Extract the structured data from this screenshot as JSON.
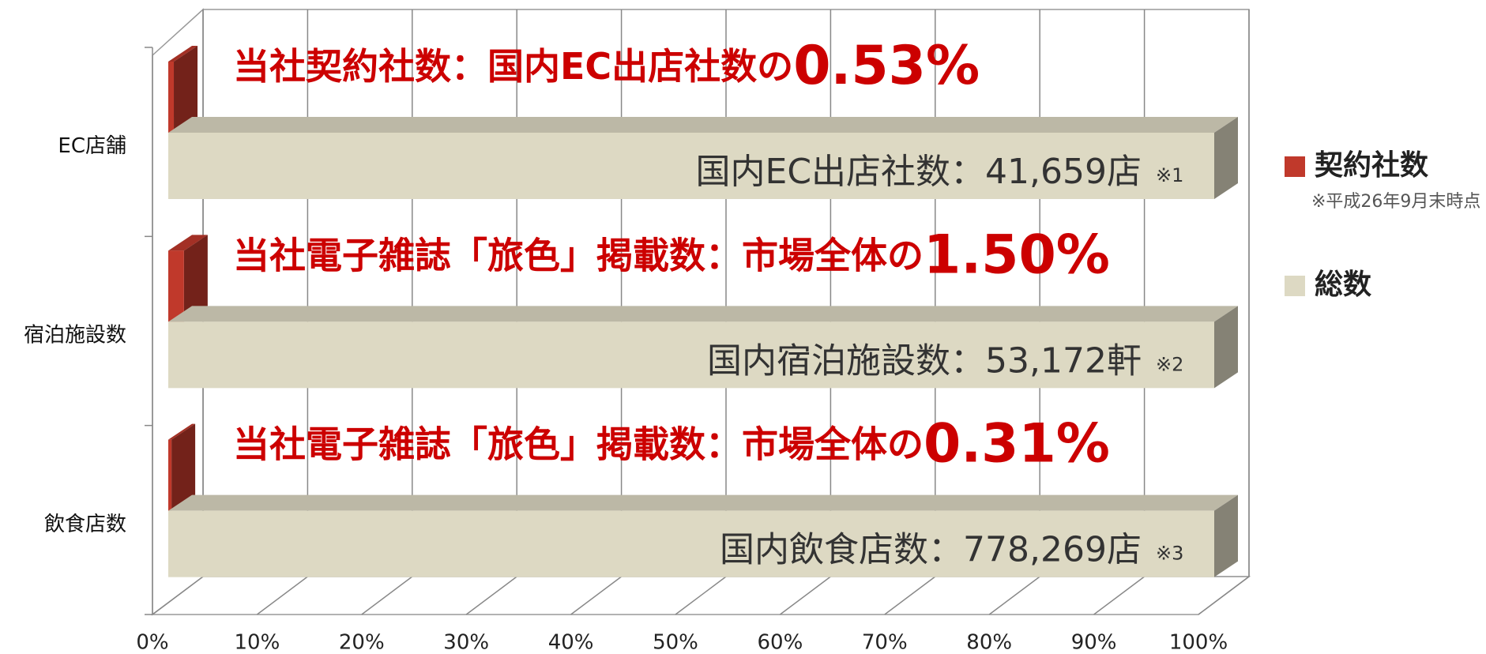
{
  "chart_data": {
    "type": "bar3d",
    "categories": [
      "EC店舗",
      "宿泊施設数",
      "飲食店数"
    ],
    "series": [
      {
        "name": "契約社数",
        "color": "#c0392b",
        "values": [
          0.53,
          1.5,
          0.31
        ],
        "value_labels": [
          "0.53%",
          "1.50%",
          "0.31%"
        ]
      },
      {
        "name": "総数",
        "color": "#ddd9c3",
        "values": [
          100,
          100,
          100
        ]
      }
    ],
    "annotations": [
      {
        "text": "当社契約社数：国内EC出店社数の",
        "label": "国内EC出店社数：41,659店",
        "note": "※1"
      },
      {
        "text": "当社電子雑誌「旅色」掲載数：市場全体の",
        "label": "国内宿泊施設数：53,172軒",
        "note": "※2"
      },
      {
        "text": "当社電子雑誌「旅色」掲載数：市場全体の",
        "label": "国内飲食店数：778,269店",
        "note": "※3"
      }
    ],
    "legend_note": "※平成26年9月末時点",
    "legend": "right",
    "grid": true,
    "xlim": [
      0,
      100
    ],
    "xticks": [
      {
        "value": 0,
        "label": "0%"
      },
      {
        "value": 10,
        "label": "10%"
      },
      {
        "value": 20,
        "label": "20%"
      },
      {
        "value": 30,
        "label": "30%"
      },
      {
        "value": 40,
        "label": "40%"
      },
      {
        "value": 50,
        "label": "50%"
      },
      {
        "value": 60,
        "label": "60%"
      },
      {
        "value": 70,
        "label": "70%"
      },
      {
        "value": 80,
        "label": "80%"
      },
      {
        "value": 90,
        "label": "90%"
      },
      {
        "value": 100,
        "label": "100%"
      }
    ]
  }
}
